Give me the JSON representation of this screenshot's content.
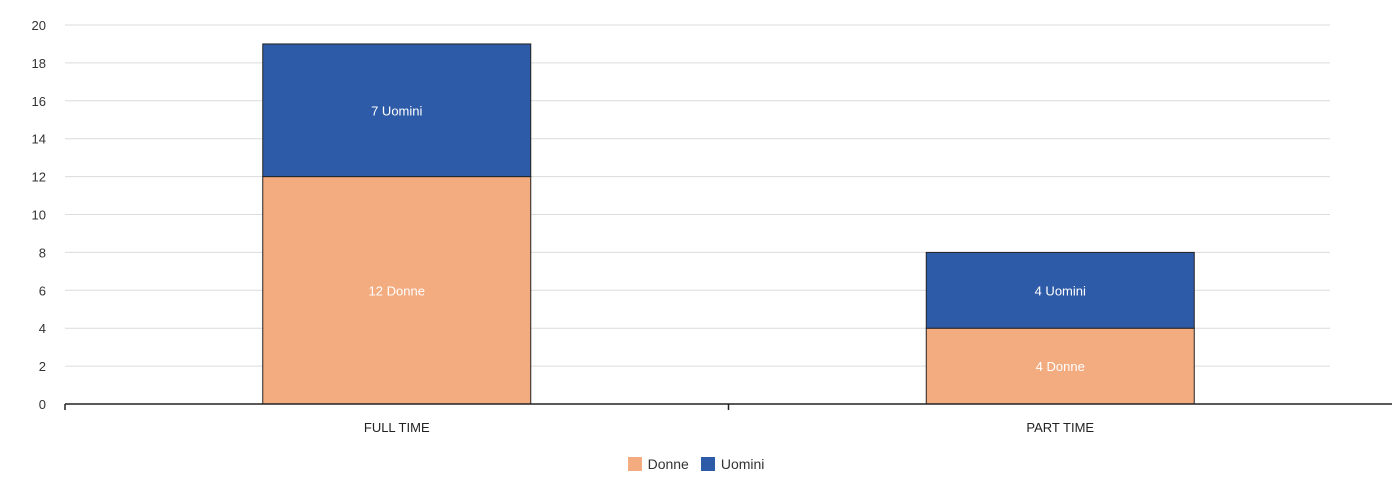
{
  "chart_data": {
    "type": "bar",
    "stacked": true,
    "categories": [
      "FULL TIME",
      "PART TIME"
    ],
    "series": [
      {
        "name": "Donne",
        "values": [
          12,
          4
        ],
        "labels": [
          "12 Donne",
          "4 Donne"
        ],
        "color": "#f3ab80"
      },
      {
        "name": "Uomini",
        "values": [
          7,
          4
        ],
        "labels": [
          "7 Uomini",
          "4 Uomini"
        ],
        "color": "#2e5ba8"
      }
    ],
    "ylim": [
      0,
      20
    ],
    "yticks": [
      0,
      2,
      4,
      6,
      8,
      10,
      12,
      14,
      16,
      18,
      20
    ],
    "grid": true,
    "legend_position": "bottom",
    "title": "",
    "xlabel": "",
    "ylabel": ""
  }
}
